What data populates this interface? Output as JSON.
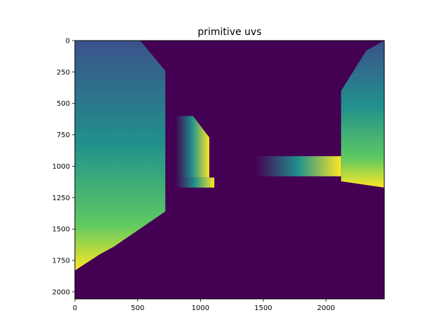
{
  "chart_data": {
    "type": "heatmap",
    "title": "primitive uvs",
    "xlabel": "",
    "ylabel": "",
    "xlim": [
      0,
      2464
    ],
    "ylim": [
      2056,
      0
    ],
    "x_ticks": [
      0,
      500,
      1000,
      1500,
      2000
    ],
    "y_ticks": [
      0,
      250,
      500,
      750,
      1000,
      1250,
      1500,
      1750,
      2000
    ],
    "grid": false,
    "legend": "none",
    "colormap": "viridis",
    "background_value": 0,
    "colors": {
      "background": "#440154",
      "low": "#440154",
      "mid_low": "#3b528b",
      "mid": "#21918c",
      "mid_high": "#5ec962",
      "high": "#fde725"
    },
    "regions": [
      {
        "name": "left-wall",
        "polygon": [
          [
            0,
            0
          ],
          [
            520,
            0
          ],
          [
            720,
            240
          ],
          [
            720,
            1360
          ],
          [
            310,
            1640
          ],
          [
            200,
            1700
          ],
          [
            0,
            1830
          ]
        ],
        "gradient": "vertical"
      },
      {
        "name": "left-box",
        "polygon": [
          [
            800,
            600
          ],
          [
            940,
            600
          ],
          [
            1070,
            770
          ],
          [
            1070,
            1090
          ],
          [
            800,
            1090
          ]
        ],
        "gradient": "horizontal"
      },
      {
        "name": "left-box-base",
        "polygon": [
          [
            800,
            1090
          ],
          [
            1110,
            1090
          ],
          [
            1110,
            1170
          ],
          [
            800,
            1170
          ]
        ],
        "gradient": "horizontal"
      },
      {
        "name": "center-strip",
        "polygon": [
          [
            1440,
            920
          ],
          [
            2120,
            920
          ],
          [
            2120,
            1080
          ],
          [
            1440,
            1080
          ]
        ],
        "gradient": "horizontal"
      },
      {
        "name": "right-wall",
        "polygon": [
          [
            2120,
            400
          ],
          [
            2320,
            80
          ],
          [
            2464,
            0
          ],
          [
            2464,
            1170
          ],
          [
            2120,
            1120
          ]
        ],
        "gradient": "vertical"
      }
    ]
  }
}
